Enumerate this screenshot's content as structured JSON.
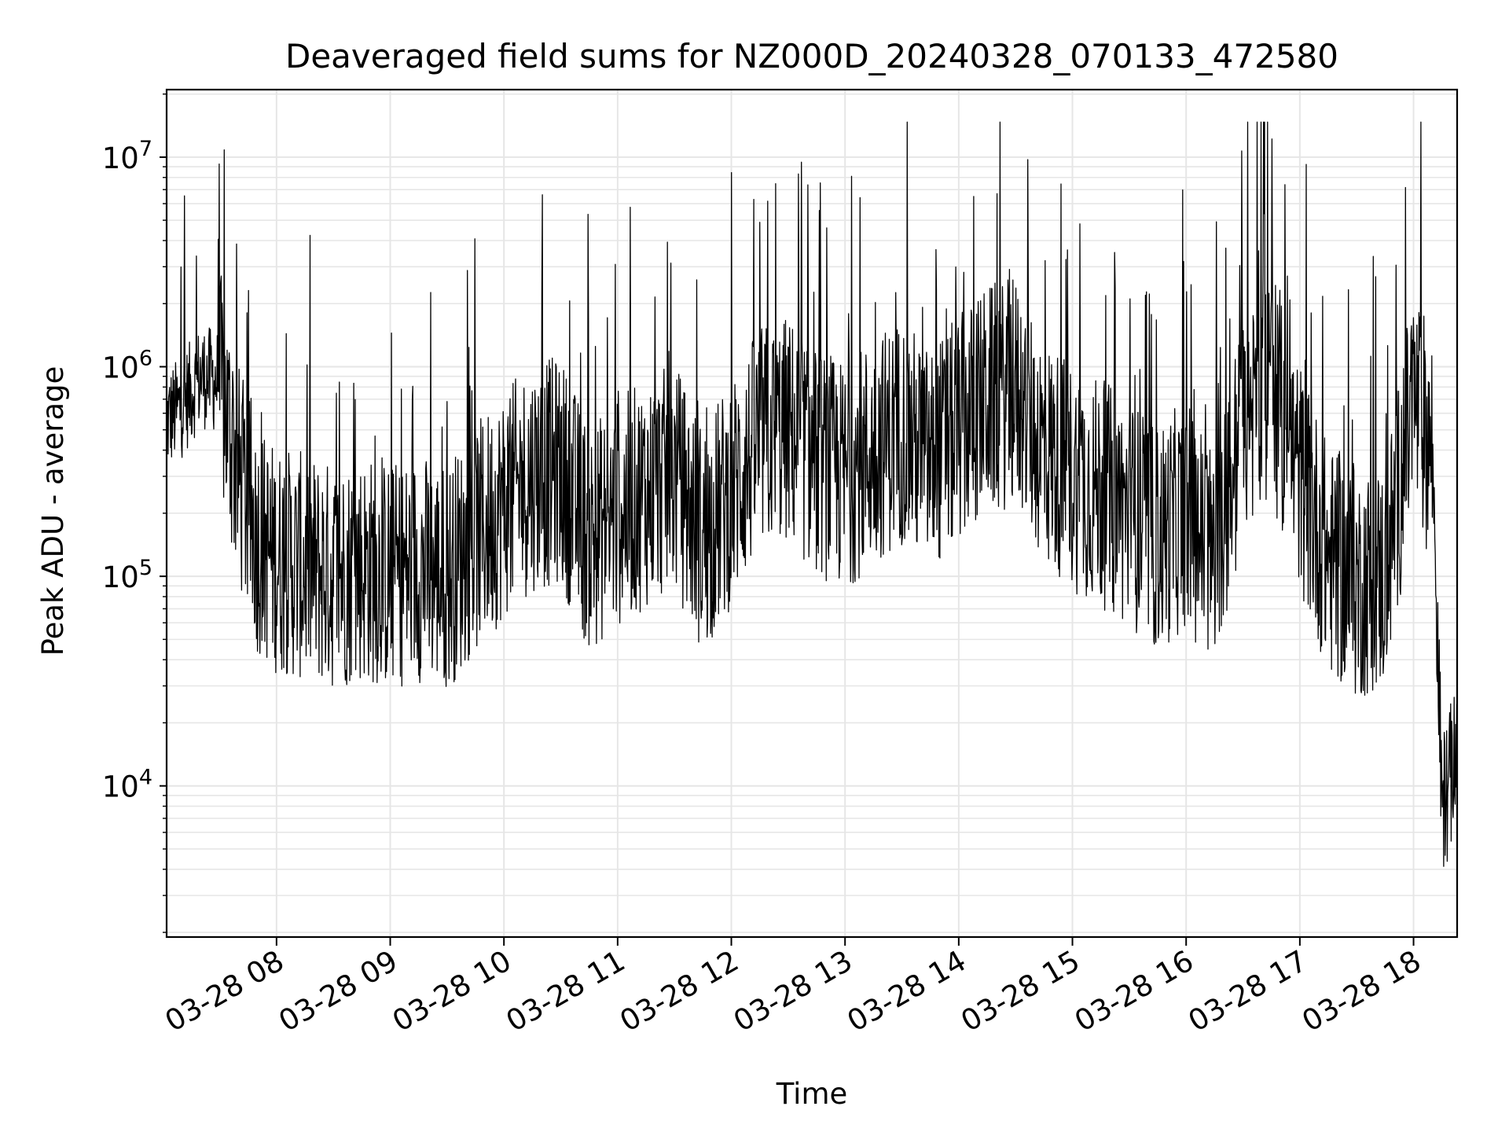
{
  "chart_data": {
    "type": "line",
    "title": "Deaveraged field sums for NZ000D_20240328_070133_472580",
    "xlabel": "Time",
    "ylabel": "Peak ADU - average",
    "yscale": "log",
    "ylim": [
      1900,
      21000000
    ],
    "xlim": [
      "03-28 07:02",
      "03-28 18:23"
    ],
    "x_ticks": [
      "03-28 08",
      "03-28 09",
      "03-28 10",
      "03-28 11",
      "03-28 12",
      "03-28 13",
      "03-28 14",
      "03-28 15",
      "03-28 16",
      "03-28 17",
      "03-28 18"
    ],
    "y_ticks": [
      {
        "value": 10000,
        "base": "10",
        "exp": "4"
      },
      {
        "value": 100000,
        "base": "10",
        "exp": "5"
      },
      {
        "value": 1000000,
        "base": "10",
        "exp": "6"
      },
      {
        "value": 10000000,
        "base": "10",
        "exp": "7"
      }
    ],
    "grid": true,
    "line_color": "#000000",
    "grid_color": "#e6e6e6",
    "series": [
      {
        "values_note": "noisy time series; representative envelope points below (time, value)",
        "points": [
          [
            "03-28 07:02",
            550000
          ],
          [
            "03-28 07:10",
            650000
          ],
          [
            "03-28 07:20",
            900000
          ],
          [
            "03-28 07:30",
            850000
          ],
          [
            "03-28 07:40",
            300000
          ],
          [
            "03-28 07:50",
            150000
          ],
          [
            "03-28 08:00",
            120000
          ],
          [
            "03-28 08:15",
            110000
          ],
          [
            "03-28 08:30",
            100000
          ],
          [
            "03-28 08:45",
            110000
          ],
          [
            "03-28 09:00",
            100000
          ],
          [
            "03-28 09:15",
            110000
          ],
          [
            "03-28 09:30",
            100000
          ],
          [
            "03-28 09:45",
            150000
          ],
          [
            "03-28 10:00",
            220000
          ],
          [
            "03-28 10:15",
            300000
          ],
          [
            "03-28 10:30",
            320000
          ],
          [
            "03-28 10:45",
            150000
          ],
          [
            "03-28 11:00",
            200000
          ],
          [
            "03-28 11:15",
            250000
          ],
          [
            "03-28 11:30",
            300000
          ],
          [
            "03-28 11:45",
            150000
          ],
          [
            "03-28 12:00",
            250000
          ],
          [
            "03-28 12:15",
            450000
          ],
          [
            "03-28 12:30",
            500000
          ],
          [
            "03-28 12:45",
            350000
          ],
          [
            "03-28 13:00",
            300000
          ],
          [
            "03-28 13:15",
            400000
          ],
          [
            "03-28 13:30",
            500000
          ],
          [
            "03-28 13:45",
            350000
          ],
          [
            "03-28 14:00",
            500000
          ],
          [
            "03-28 14:15",
            700000
          ],
          [
            "03-28 14:30",
            750000
          ],
          [
            "03-28 14:45",
            400000
          ],
          [
            "03-28 15:00",
            300000
          ],
          [
            "03-28 15:15",
            250000
          ],
          [
            "03-28 15:30",
            200000
          ],
          [
            "03-28 15:45",
            150000
          ],
          [
            "03-28 16:00",
            200000
          ],
          [
            "03-28 16:15",
            120000
          ],
          [
            "03-28 16:30",
            500000
          ],
          [
            "03-28 16:45",
            800000
          ],
          [
            "03-28 17:00",
            300000
          ],
          [
            "03-28 17:15",
            120000
          ],
          [
            "03-28 17:30",
            90000
          ],
          [
            "03-28 17:45",
            100000
          ],
          [
            "03-28 18:00",
            700000
          ],
          [
            "03-28 18:10",
            400000
          ],
          [
            "03-28 18:15",
            8000
          ],
          [
            "03-28 18:23",
            14000
          ]
        ]
      }
    ]
  }
}
